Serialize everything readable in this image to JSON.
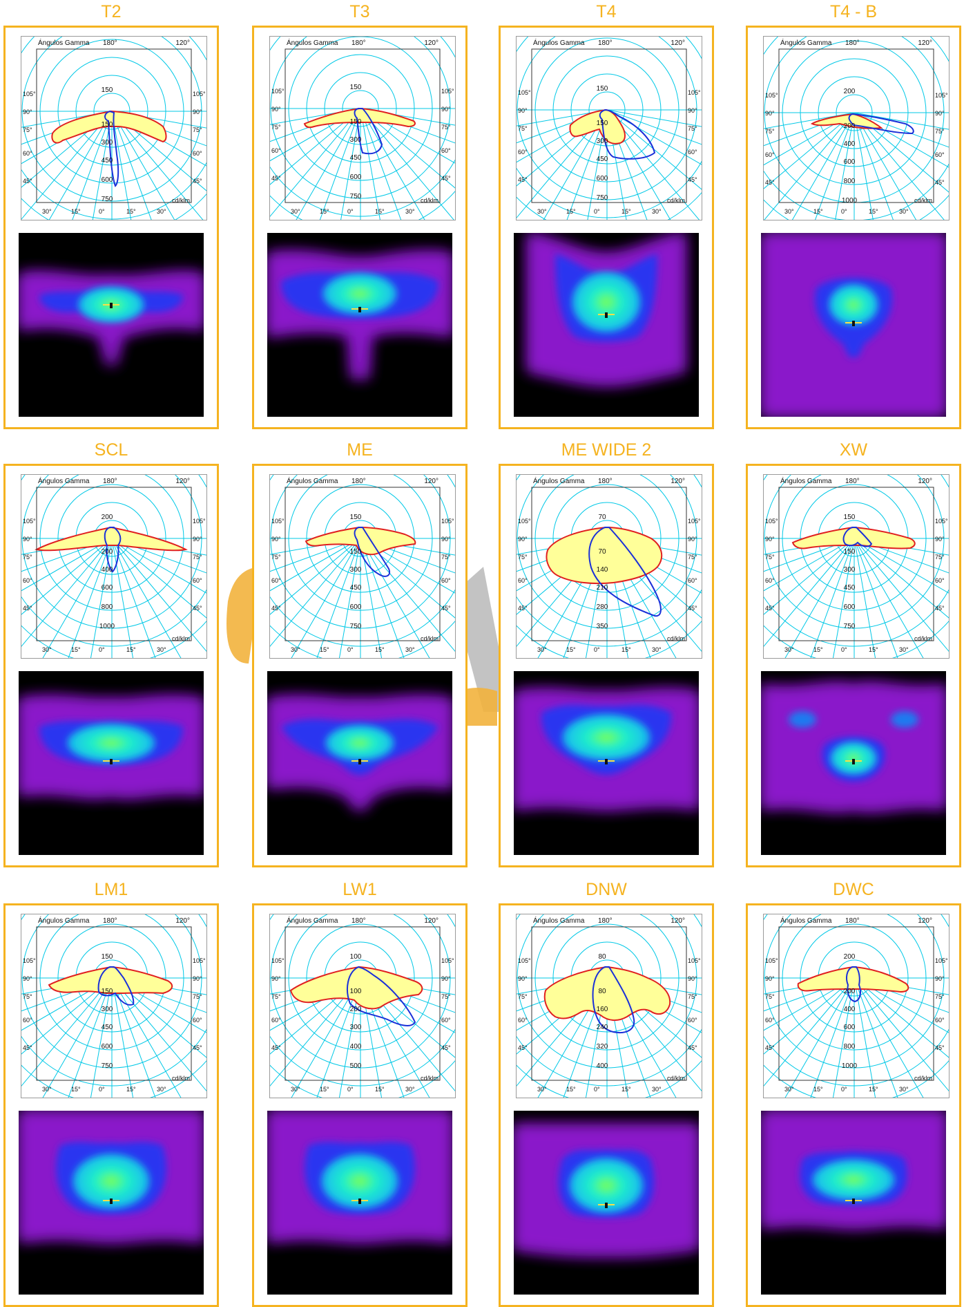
{
  "chart_meta": {
    "header_left": "Ángulos Gamma",
    "header_angle": "180°",
    "header_right": "120°",
    "unit": "cd/klm",
    "bottom_ticks": [
      "30°",
      "15°",
      "0°",
      "15°",
      "30°"
    ],
    "side_ticks": [
      "105°",
      "90°",
      "75°",
      "60°",
      "45°"
    ]
  },
  "colors": {
    "title": "#f5b320",
    "border": "#f5b320",
    "grid": "#00c8e6",
    "curve_red": "#e02020",
    "curve_blue": "#1a30d8",
    "fill_yellow": "#ffff99"
  },
  "chart_data": [
    {
      "type": "polar",
      "name": "T2",
      "radial_ticks": [
        "150",
        "150",
        "300",
        "450",
        "600",
        "750"
      ]
    },
    {
      "type": "polar",
      "name": "T3",
      "radial_ticks": [
        "150",
        "150",
        "300",
        "450",
        "600",
        "750"
      ]
    },
    {
      "type": "polar",
      "name": "T4",
      "radial_ticks": [
        "150",
        "150",
        "300",
        "450",
        "600",
        "750"
      ]
    },
    {
      "type": "polar",
      "name": "T4 - B",
      "radial_ticks": [
        "200",
        "200",
        "400",
        "600",
        "800",
        "1000"
      ]
    },
    {
      "type": "polar",
      "name": "SCL",
      "radial_ticks": [
        "200",
        "200",
        "400",
        "600",
        "800",
        "1000"
      ]
    },
    {
      "type": "polar",
      "name": "ME",
      "radial_ticks": [
        "150",
        "150",
        "300",
        "450",
        "600",
        "750"
      ]
    },
    {
      "type": "polar",
      "name": "ME WIDE 2",
      "radial_ticks": [
        "70",
        "70",
        "140",
        "210",
        "280",
        "350"
      ]
    },
    {
      "type": "polar",
      "name": "XW",
      "radial_ticks": [
        "150",
        "150",
        "300",
        "450",
        "600",
        "750"
      ]
    },
    {
      "type": "polar",
      "name": "LM1",
      "radial_ticks": [
        "150",
        "150",
        "300",
        "450",
        "600",
        "750"
      ]
    },
    {
      "type": "polar",
      "name": "LW1",
      "radial_ticks": [
        "100",
        "100",
        "200",
        "300",
        "400",
        "500"
      ]
    },
    {
      "type": "polar",
      "name": "DNW",
      "radial_ticks": [
        "80",
        "80",
        "160",
        "240",
        "320",
        "400"
      ]
    },
    {
      "type": "polar",
      "name": "DWC",
      "radial_ticks": [
        "200",
        "200",
        "400",
        "600",
        "800",
        "1000"
      ]
    }
  ]
}
